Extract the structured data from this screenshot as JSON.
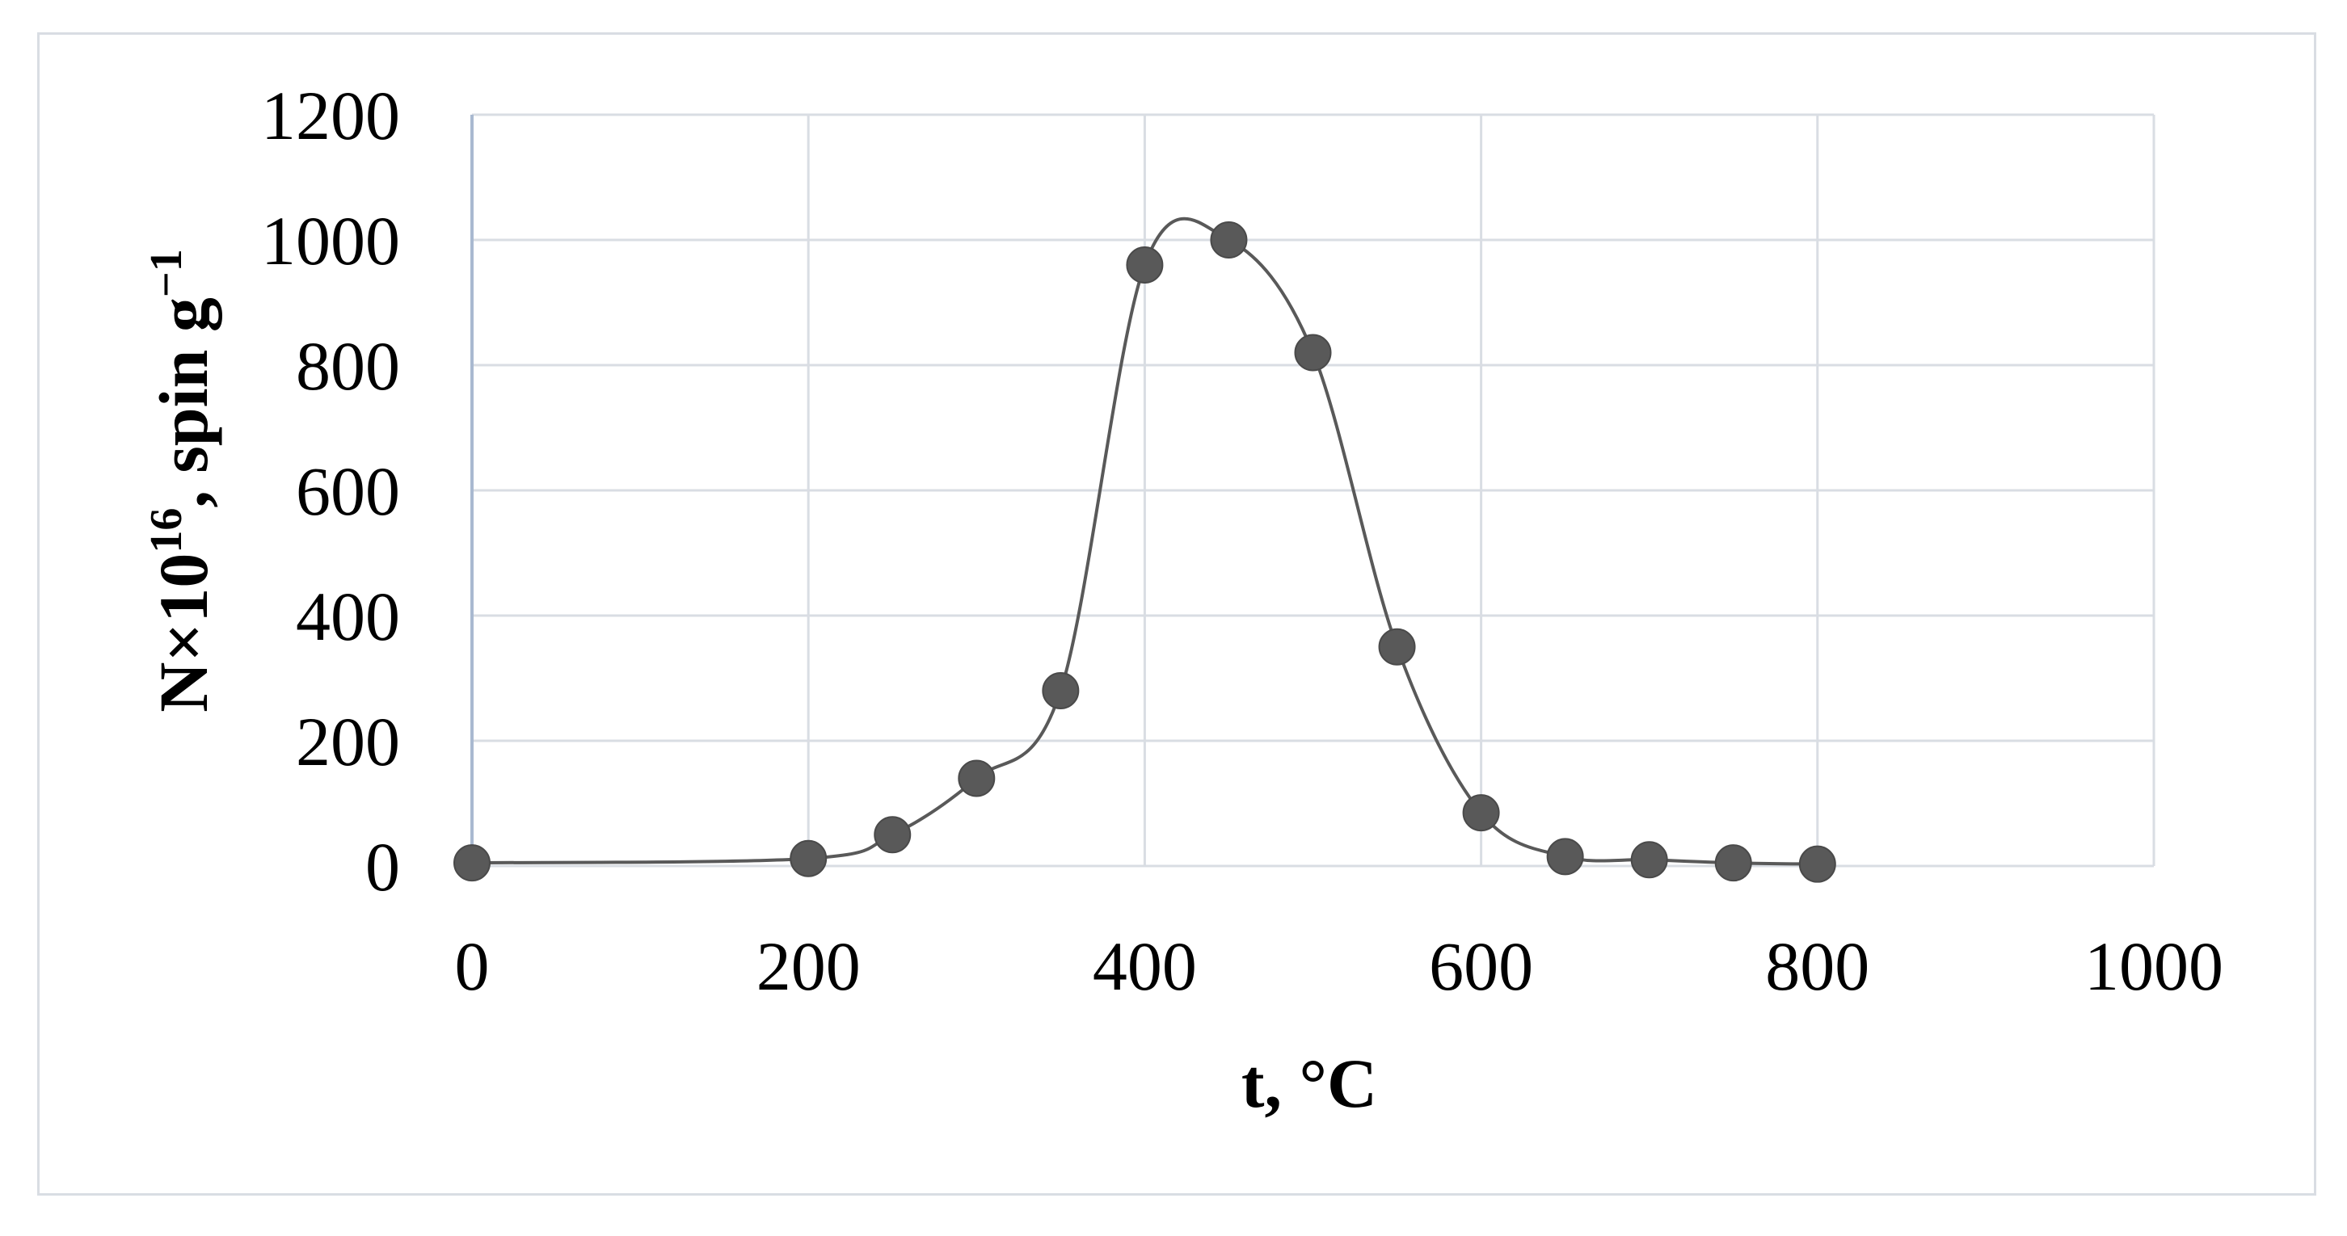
{
  "chart_data": {
    "type": "scatter",
    "title": "",
    "xlabel": "t, °C",
    "ylabel": {
      "prefix": "N×10",
      "prefix_sup": "16",
      "unit": ", spin g",
      "unit_sup": "−1"
    },
    "xlim": [
      0,
      1000
    ],
    "ylim": [
      0,
      1200
    ],
    "x_ticks": [
      0,
      200,
      400,
      600,
      800,
      1000
    ],
    "y_ticks": [
      0,
      200,
      400,
      600,
      800,
      1000,
      1200
    ],
    "grid": true,
    "smooth_line": true,
    "series": [
      {
        "x": [
          0,
          200,
          250,
          300,
          350,
          400,
          450,
          500,
          550,
          600,
          650,
          700,
          750,
          800
        ],
        "y": [
          5,
          12,
          50,
          140,
          280,
          960,
          1000,
          820,
          350,
          85,
          15,
          10,
          5,
          3
        ]
      }
    ],
    "colors": {
      "marker": "#595959",
      "line": "#595959",
      "grid": "#d9dde3",
      "y_axis": "#a9b9d0"
    }
  }
}
